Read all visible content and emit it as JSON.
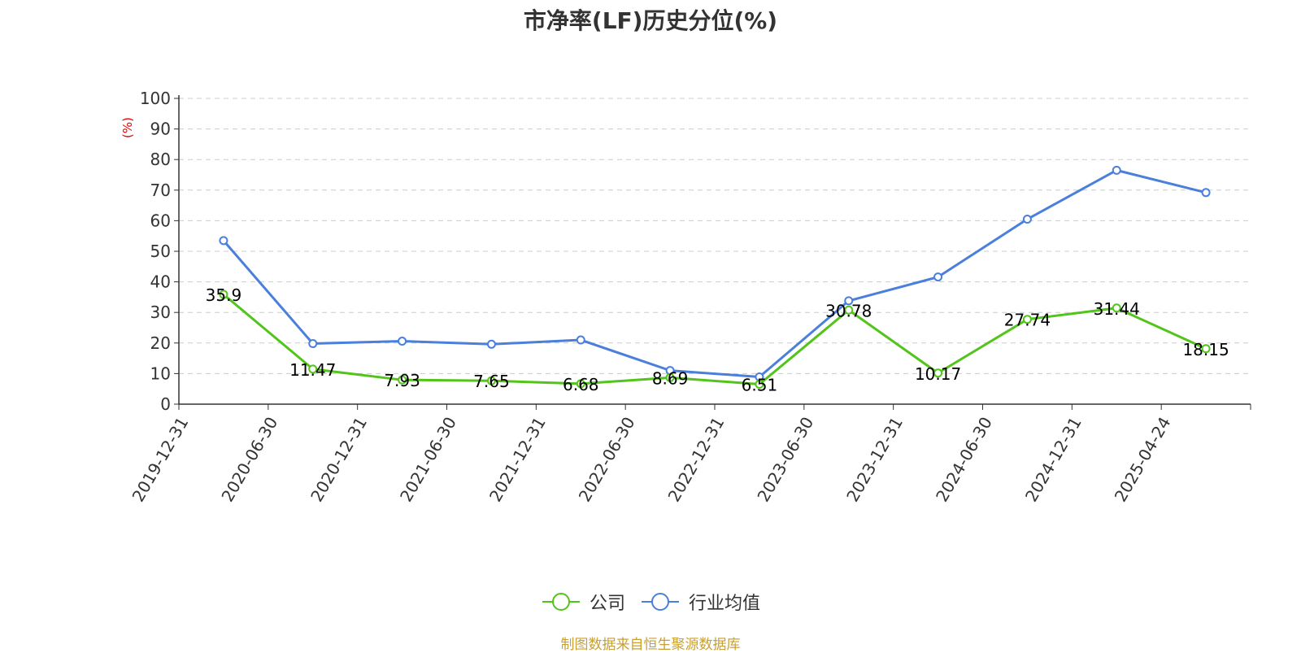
{
  "chart_data": {
    "type": "line",
    "title": "市净率(LF)历史分位(%)",
    "ylabel": "(%)",
    "xlabel": "",
    "ylim": [
      0,
      100
    ],
    "yticks": [
      "0",
      "10",
      "20",
      "30",
      "40",
      "50",
      "60",
      "70",
      "80",
      "90",
      "100"
    ],
    "categories": [
      "2019-12-31",
      "2020-06-30",
      "2020-12-31",
      "2021-06-30",
      "2021-12-31",
      "2022-06-30",
      "2022-12-31",
      "2023-06-30",
      "2023-12-31",
      "2024-06-30",
      "2024-12-31",
      "2025-04-24"
    ],
    "series": [
      {
        "name": "公司",
        "color": "#52c41a",
        "values": [
          35.9,
          11.47,
          7.93,
          7.65,
          6.68,
          8.69,
          6.51,
          30.78,
          10.17,
          27.74,
          31.44,
          18.15
        ],
        "labels": [
          "35.9",
          "11.47",
          "7.93",
          "7.65",
          "6.68",
          "8.69",
          "6.51",
          "30.78",
          "10.17",
          "27.74",
          "31.44",
          "18.15"
        ]
      },
      {
        "name": "行业均值",
        "color": "#4a7fdc",
        "values": [
          53.5,
          19.8,
          20.6,
          19.6,
          21.0,
          11.0,
          8.9,
          33.8,
          41.6,
          60.5,
          76.5,
          69.2
        ]
      }
    ],
    "grid": true,
    "legend_position": "bottom-center"
  },
  "unit_color": "#e60000",
  "source_note": "制图数据来自恒生聚源数据库",
  "source_color": "#c8a033"
}
